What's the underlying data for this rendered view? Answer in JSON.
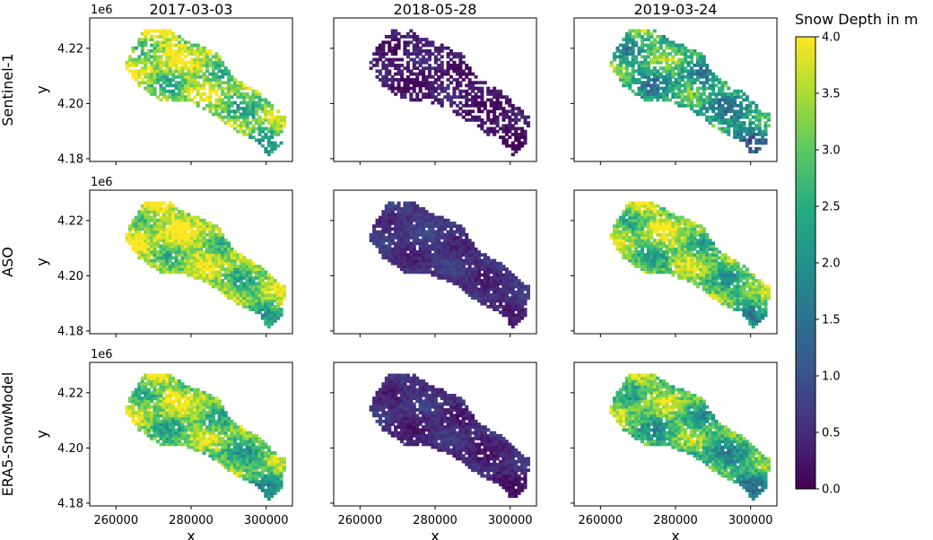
{
  "chart_data": {
    "type": "heatmap",
    "col_titles": [
      "2017-03-03",
      "2018-05-28",
      "2019-03-24"
    ],
    "row_labels": [
      "Sentinel-1",
      "ASO",
      "ERA5-SnowModel"
    ],
    "xlabel": "x",
    "ylabel": "y",
    "x_ticks": [
      "260000",
      "280000",
      "300000"
    ],
    "x_tick_values": [
      260000,
      280000,
      300000
    ],
    "xlim": [
      253000,
      307000
    ],
    "y_ticks": [
      "4.18",
      "4.20",
      "4.22"
    ],
    "y_tick_values": [
      4.18,
      4.2,
      4.22
    ],
    "ylim": [
      4.179,
      4.231
    ],
    "y_offset_label": "1e6",
    "colorbar": {
      "label": "Snow Depth in m",
      "ticks": [
        "0.0",
        "0.5",
        "1.0",
        "1.5",
        "2.0",
        "2.5",
        "3.0",
        "3.5",
        "4.0"
      ],
      "range": [
        0,
        4
      ],
      "colormap": "viridis"
    },
    "panel_mean_depth": [
      [
        2.9,
        0.2,
        2.0
      ],
      [
        3.0,
        0.5,
        2.7
      ],
      [
        2.7,
        0.4,
        2.4
      ]
    ]
  }
}
